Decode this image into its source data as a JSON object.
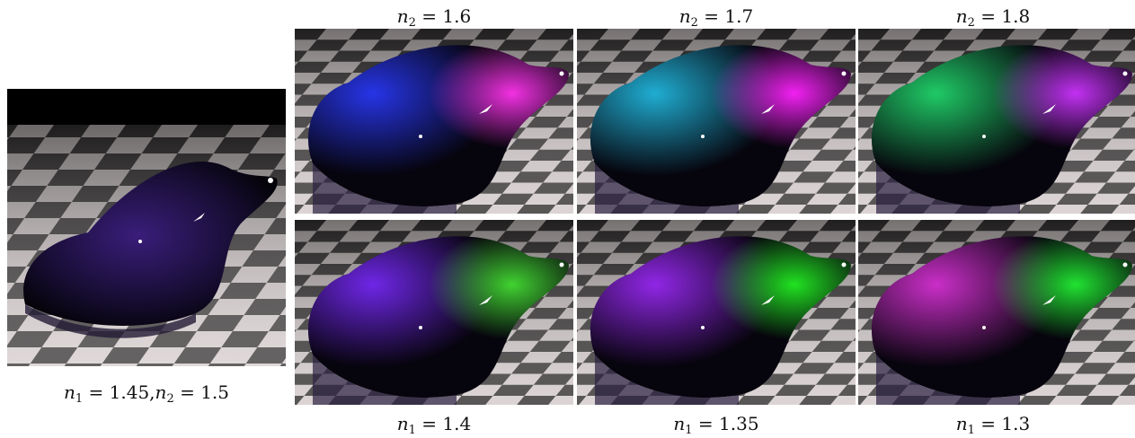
{
  "figure": {
    "main": {
      "caption_n1_var": "n",
      "caption_n1_sub": "1",
      "caption_n1_val": " = 1.45,",
      "caption_n2_var": "n",
      "caption_n2_sub": "2",
      "caption_n2_val": " = 1.5",
      "tint_a": "#3a1d7a",
      "tint_b": "#1a0f3a"
    },
    "top_row": [
      {
        "var": "n",
        "sub": "2",
        "val": " = 1.6",
        "glow_a": "#2a3aff",
        "glow_b": "#ff33ee"
      },
      {
        "var": "n",
        "sub": "2",
        "val": " = 1.7",
        "glow_a": "#22c0e8",
        "glow_b": "#ff22ff"
      },
      {
        "var": "n",
        "sub": "2",
        "val": " = 1.8",
        "glow_a": "#22e070",
        "glow_b": "#cc33ff"
      }
    ],
    "bottom_row": [
      {
        "var": "n",
        "sub": "1",
        "val": " = 1.4",
        "glow_a": "#7a2aff",
        "glow_b": "#44dd33"
      },
      {
        "var": "n",
        "sub": "1",
        "val": " = 1.35",
        "glow_a": "#a02aff",
        "glow_b": "#22ee22"
      },
      {
        "var": "n",
        "sub": "1",
        "val": " = 1.3",
        "glow_a": "#e033dd",
        "glow_b": "#22ee33"
      }
    ]
  }
}
